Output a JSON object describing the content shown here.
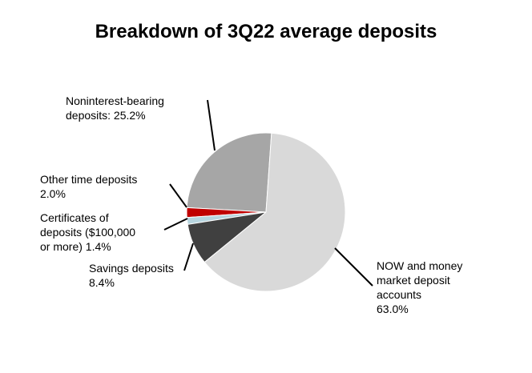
{
  "chart_data": {
    "type": "pie",
    "title": "Breakdown of 3Q22 average deposits",
    "start_angle_deg": 4,
    "direction": "clockwise",
    "slices": [
      {
        "label": "NOW and money\nmarket deposit\naccounts\n63.0%",
        "value": 63.0,
        "color": "#d9d9d9"
      },
      {
        "label": "Savings deposits\n8.4%",
        "value": 8.4,
        "color": "#404040"
      },
      {
        "label": "Certificates of\ndeposits ($100,000\nor more) 1.4%",
        "value": 1.4,
        "color": "#b7d5df"
      },
      {
        "label": "Other time deposits\n2.0%",
        "value": 2.0,
        "color": "#c00000"
      },
      {
        "label": "Noninterest-bearing\ndeposits: 25.2%",
        "value": 25.2,
        "color": "#a6a6a6"
      }
    ]
  }
}
